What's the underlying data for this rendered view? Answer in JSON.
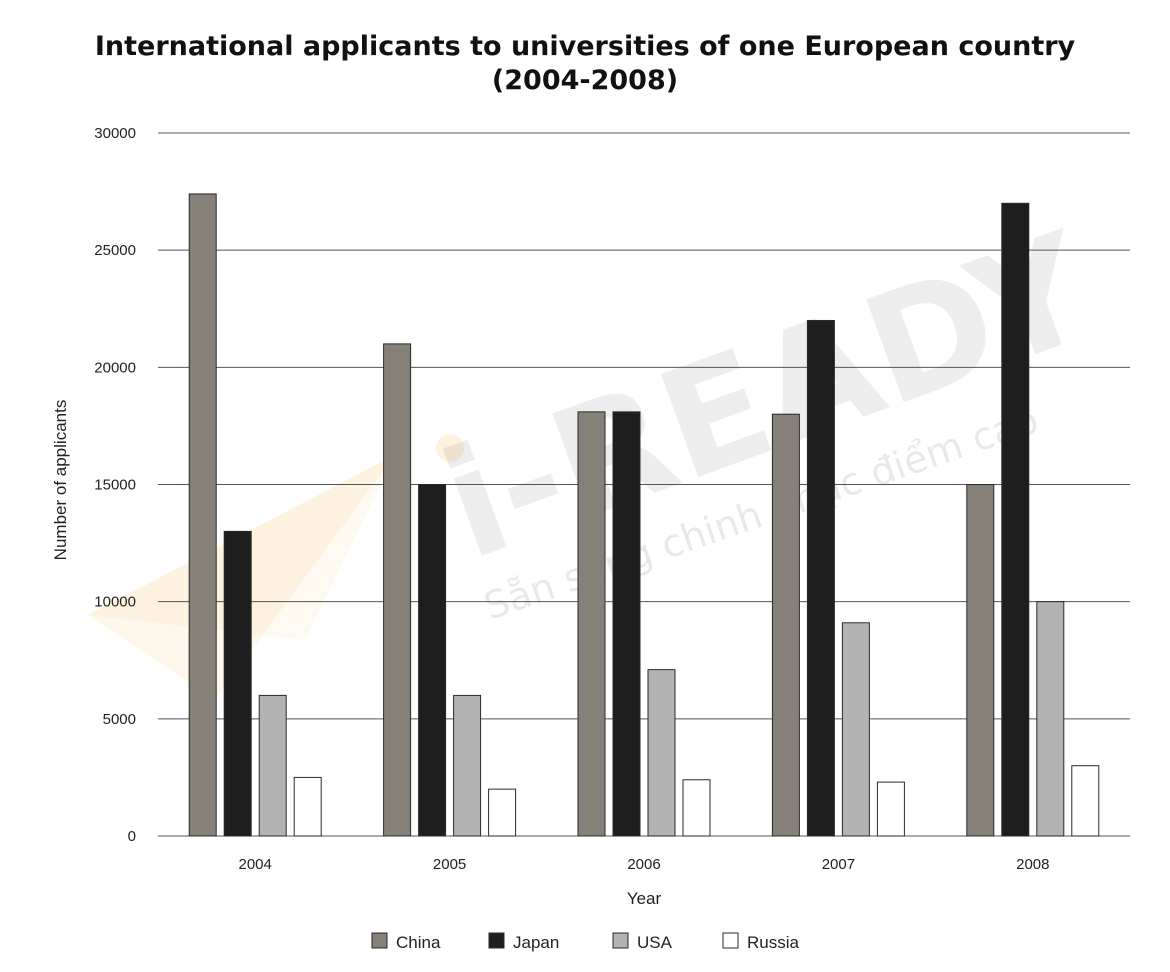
{
  "chart_data": {
    "type": "bar",
    "title_lines": [
      "International applicants to universities of one European country",
      "(2004-2008)"
    ],
    "xlabel": "Year",
    "ylabel": "Number of applicants",
    "categories": [
      "2004",
      "2005",
      "2006",
      "2007",
      "2008"
    ],
    "ylim": [
      0,
      30000
    ],
    "yticks": [
      0,
      5000,
      10000,
      15000,
      20000,
      25000,
      30000
    ],
    "grid": true,
    "legend_position": "bottom",
    "series": [
      {
        "name": "China",
        "color": "#858078",
        "values": [
          27400,
          21000,
          18100,
          18000,
          15000
        ]
      },
      {
        "name": "Japan",
        "color": "#1e1e1e",
        "values": [
          13000,
          15000,
          18100,
          22000,
          27000
        ]
      },
      {
        "name": "USA",
        "color": "#b3b3b3",
        "values": [
          6000,
          6000,
          7100,
          9100,
          10000
        ]
      },
      {
        "name": "Russia",
        "color": "#ffffff",
        "values": [
          2500,
          2000,
          2400,
          2300,
          3000
        ]
      }
    ]
  },
  "watermark": {
    "brand": "i-READY",
    "tagline": "Sẵn sàng chinh phục điểm cao",
    "logo_color": "#f5a623"
  }
}
